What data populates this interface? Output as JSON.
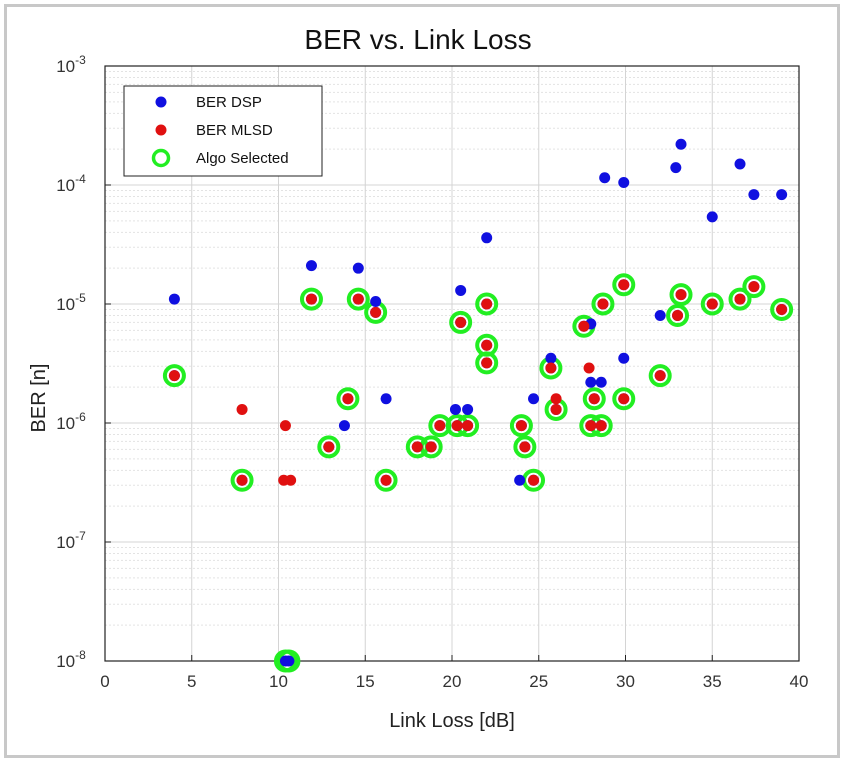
{
  "chart_data": {
    "type": "scatter",
    "title": "BER vs. Link Loss",
    "xlabel": "Link Loss [dB]",
    "ylabel": "BER [n]",
    "xlim": [
      0,
      40
    ],
    "ylim": [
      1e-08,
      0.001
    ],
    "yscale": "log",
    "grid": true,
    "legend_position": "top-left",
    "x_ticks": [
      "0",
      "5",
      "10",
      "15",
      "20",
      "25",
      "30",
      "35",
      "40"
    ],
    "y_ticks": [
      {
        "base": "10",
        "exp": "-8"
      },
      {
        "base": "10",
        "exp": "-7"
      },
      {
        "base": "10",
        "exp": "-6"
      },
      {
        "base": "10",
        "exp": "-5"
      },
      {
        "base": "10",
        "exp": "-4"
      },
      {
        "base": "10",
        "exp": "-3"
      }
    ],
    "colors": {
      "dsp": "#1010e0",
      "mlsd": "#e01010",
      "algo": "#22ee22"
    },
    "series": [
      {
        "name": "BER DSP",
        "points": [
          [
            4.0,
            1.1e-05
          ],
          [
            4.0,
            2.5e-06
          ],
          [
            7.9,
            3.3e-07
          ],
          [
            10.4,
            1e-08
          ],
          [
            10.6,
            1e-08
          ],
          [
            11.9,
            2.1e-05
          ],
          [
            11.9,
            1.1e-05
          ],
          [
            12.9,
            6.3e-07
          ],
          [
            13.8,
            9.5e-07
          ],
          [
            14.0,
            1.6e-06
          ],
          [
            14.6,
            2e-05
          ],
          [
            14.6,
            1.1e-05
          ],
          [
            15.6,
            1.05e-05
          ],
          [
            15.6,
            8.5e-06
          ],
          [
            16.2,
            1.6e-06
          ],
          [
            16.2,
            3.3e-07
          ],
          [
            18.0,
            6.3e-07
          ],
          [
            18.8,
            6.3e-07
          ],
          [
            19.3,
            9.5e-07
          ],
          [
            20.2,
            1.3e-06
          ],
          [
            20.3,
            9.5e-07
          ],
          [
            20.5,
            1.3e-05
          ],
          [
            20.5,
            7e-06
          ],
          [
            20.9,
            1.3e-06
          ],
          [
            20.9,
            9.5e-07
          ],
          [
            22.0,
            3.6e-05
          ],
          [
            22.0,
            1e-05
          ],
          [
            22.0,
            4.5e-06
          ],
          [
            22.0,
            3.2e-06
          ],
          [
            23.9,
            3.3e-07
          ],
          [
            24.0,
            9.5e-07
          ],
          [
            24.2,
            6.3e-07
          ],
          [
            24.7,
            1.6e-06
          ],
          [
            24.7,
            3.3e-07
          ],
          [
            25.7,
            3.5e-06
          ],
          [
            25.7,
            2.9e-06
          ],
          [
            26.0,
            1.3e-06
          ],
          [
            27.6,
            6.5e-06
          ],
          [
            28.0,
            6.8e-06
          ],
          [
            28.0,
            2.2e-06
          ],
          [
            28.0,
            9.5e-07
          ],
          [
            28.2,
            1.6e-06
          ],
          [
            28.6,
            2.2e-06
          ],
          [
            28.6,
            9.5e-07
          ],
          [
            28.7,
            1e-05
          ],
          [
            28.8,
            0.000115
          ],
          [
            29.9,
            0.000105
          ],
          [
            29.9,
            3.5e-06
          ],
          [
            29.9,
            1.45e-05
          ],
          [
            29.9,
            1.6e-06
          ],
          [
            32.0,
            8e-06
          ],
          [
            32.0,
            2.5e-06
          ],
          [
            32.9,
            0.00014
          ],
          [
            33.0,
            8e-06
          ],
          [
            33.2,
            0.00022
          ],
          [
            33.2,
            1.2e-05
          ],
          [
            35.0,
            5.4e-05
          ],
          [
            35.0,
            1e-05
          ],
          [
            36.6,
            0.00015
          ],
          [
            36.6,
            1.1e-05
          ],
          [
            37.4,
            8.3e-05
          ],
          [
            37.4,
            1.4e-05
          ],
          [
            39.0,
            8.3e-05
          ],
          [
            39.0,
            9e-06
          ]
        ]
      },
      {
        "name": "BER MLSD",
        "points": [
          [
            4.0,
            2.5e-06
          ],
          [
            7.9,
            1.3e-06
          ],
          [
            7.9,
            3.3e-07
          ],
          [
            10.3,
            3.3e-07
          ],
          [
            10.4,
            9.5e-07
          ],
          [
            10.7,
            3.3e-07
          ],
          [
            11.9,
            1.1e-05
          ],
          [
            12.9,
            6.3e-07
          ],
          [
            14.0,
            1.6e-06
          ],
          [
            14.6,
            1.1e-05
          ],
          [
            15.6,
            8.5e-06
          ],
          [
            16.2,
            3.3e-07
          ],
          [
            18.0,
            6.3e-07
          ],
          [
            18.8,
            6.3e-07
          ],
          [
            19.3,
            9.5e-07
          ],
          [
            20.3,
            9.5e-07
          ],
          [
            20.5,
            7e-06
          ],
          [
            20.9,
            9.5e-07
          ],
          [
            22.0,
            1e-05
          ],
          [
            22.0,
            4.5e-06
          ],
          [
            22.0,
            3.2e-06
          ],
          [
            24.0,
            9.5e-07
          ],
          [
            24.2,
            6.3e-07
          ],
          [
            24.7,
            3.3e-07
          ],
          [
            25.7,
            2.9e-06
          ],
          [
            26.0,
            1.6e-06
          ],
          [
            26.0,
            1.3e-06
          ],
          [
            27.6,
            6.5e-06
          ],
          [
            27.9,
            2.9e-06
          ],
          [
            28.0,
            9.5e-07
          ],
          [
            28.2,
            1.6e-06
          ],
          [
            28.6,
            9.5e-07
          ],
          [
            28.7,
            1e-05
          ],
          [
            29.9,
            1.45e-05
          ],
          [
            29.9,
            1.6e-06
          ],
          [
            32.0,
            2.5e-06
          ],
          [
            33.0,
            8e-06
          ],
          [
            33.2,
            1.2e-05
          ],
          [
            35.0,
            1e-05
          ],
          [
            36.6,
            1.1e-05
          ],
          [
            37.4,
            1.4e-05
          ],
          [
            39.0,
            9e-06
          ]
        ]
      },
      {
        "name": "Algo Selected",
        "points": [
          [
            4.0,
            2.5e-06
          ],
          [
            7.9,
            3.3e-07
          ],
          [
            10.4,
            1e-08
          ],
          [
            10.6,
            1e-08
          ],
          [
            11.9,
            1.1e-05
          ],
          [
            12.9,
            6.3e-07
          ],
          [
            14.0,
            1.6e-06
          ],
          [
            14.6,
            1.1e-05
          ],
          [
            15.6,
            8.5e-06
          ],
          [
            16.2,
            3.3e-07
          ],
          [
            18.0,
            6.3e-07
          ],
          [
            18.8,
            6.3e-07
          ],
          [
            19.3,
            9.5e-07
          ],
          [
            20.3,
            9.5e-07
          ],
          [
            20.5,
            7e-06
          ],
          [
            20.9,
            9.5e-07
          ],
          [
            22.0,
            1e-05
          ],
          [
            22.0,
            4.5e-06
          ],
          [
            22.0,
            3.2e-06
          ],
          [
            24.0,
            9.5e-07
          ],
          [
            24.2,
            6.3e-07
          ],
          [
            24.7,
            3.3e-07
          ],
          [
            25.7,
            2.9e-06
          ],
          [
            26.0,
            1.3e-06
          ],
          [
            27.6,
            6.5e-06
          ],
          [
            28.0,
            9.5e-07
          ],
          [
            28.2,
            1.6e-06
          ],
          [
            28.6,
            9.5e-07
          ],
          [
            28.7,
            1e-05
          ],
          [
            29.9,
            1.45e-05
          ],
          [
            29.9,
            1.6e-06
          ],
          [
            32.0,
            2.5e-06
          ],
          [
            33.0,
            8e-06
          ],
          [
            33.2,
            1.2e-05
          ],
          [
            35.0,
            1e-05
          ],
          [
            36.6,
            1.1e-05
          ],
          [
            37.4,
            1.4e-05
          ],
          [
            39.0,
            9e-06
          ]
        ]
      }
    ]
  }
}
